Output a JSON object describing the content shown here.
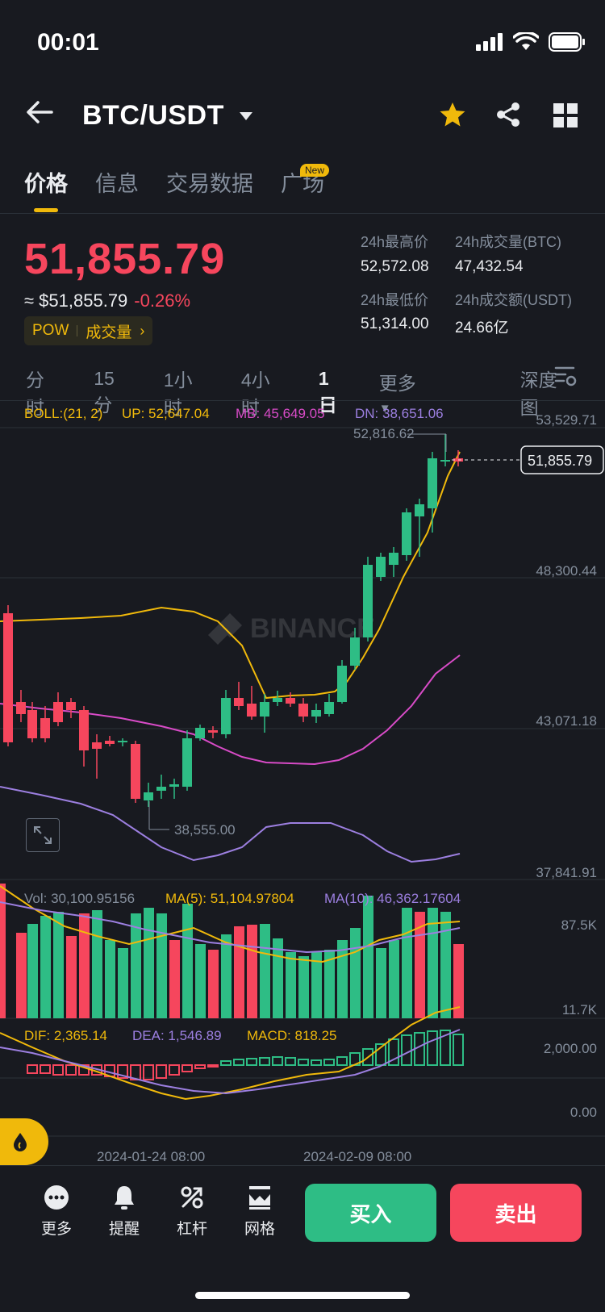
{
  "status": {
    "time": "00:01"
  },
  "header": {
    "pair": "BTC/USDT"
  },
  "tabs": {
    "t0": "价格",
    "t1": "信息",
    "t2": "交易数据",
    "t3": "广场",
    "badge": "New"
  },
  "ticker": {
    "price": "51,855.79",
    "fiat": "≈ $51,855.79",
    "change": "-0.26%",
    "tag1": "POW",
    "tag2": "成交量",
    "high_label": "24h最高价",
    "high": "52,572.08",
    "low_label": "24h最低价",
    "low": "51,314.00",
    "vol_btc_label": "24h成交量(BTC)",
    "vol_btc": "47,432.54",
    "vol_usdt_label": "24h成交额(USDT)",
    "vol_usdt": "24.66亿"
  },
  "intervals": {
    "i0": "分时",
    "i1": "15分",
    "i2": "1小时",
    "i3": "4小时",
    "i4": "1日",
    "more": "更多",
    "depth": "深度图"
  },
  "boll": {
    "label": "BOLL:(21, 2)",
    "up": "UP: 52,647.04",
    "mb": "MB: 45,649.05",
    "dn": "DN: 38,651.06"
  },
  "axis": {
    "p1": "53,529.71",
    "p2": "48,300.44",
    "p3": "43,071.18",
    "p4": "37,841.91",
    "high_mark": "52,816.62",
    "low_mark": "38,555.00",
    "last": "51,855.79",
    "v1": "87.5K",
    "v2": "11.7K",
    "m1": "2,000.00",
    "m2": "0.00",
    "d1": "2024-01-24 08:00",
    "d2": "2024-02-09 08:00"
  },
  "vol": {
    "label": "Vol: 30,100.95156",
    "ma5": "MA(5): 51,104.97804",
    "ma10": "MA(10): 46,362.17604"
  },
  "macd": {
    "dif": "DIF: 2,365.14",
    "dea": "DEA: 1,546.89",
    "macd": "MACD: 818.25"
  },
  "bottom": {
    "more": "更多",
    "alert": "提醒",
    "leverage": "杠杆",
    "grid": "网格",
    "buy": "买入",
    "sell": "卖出"
  },
  "watermark": "BINANCE"
}
